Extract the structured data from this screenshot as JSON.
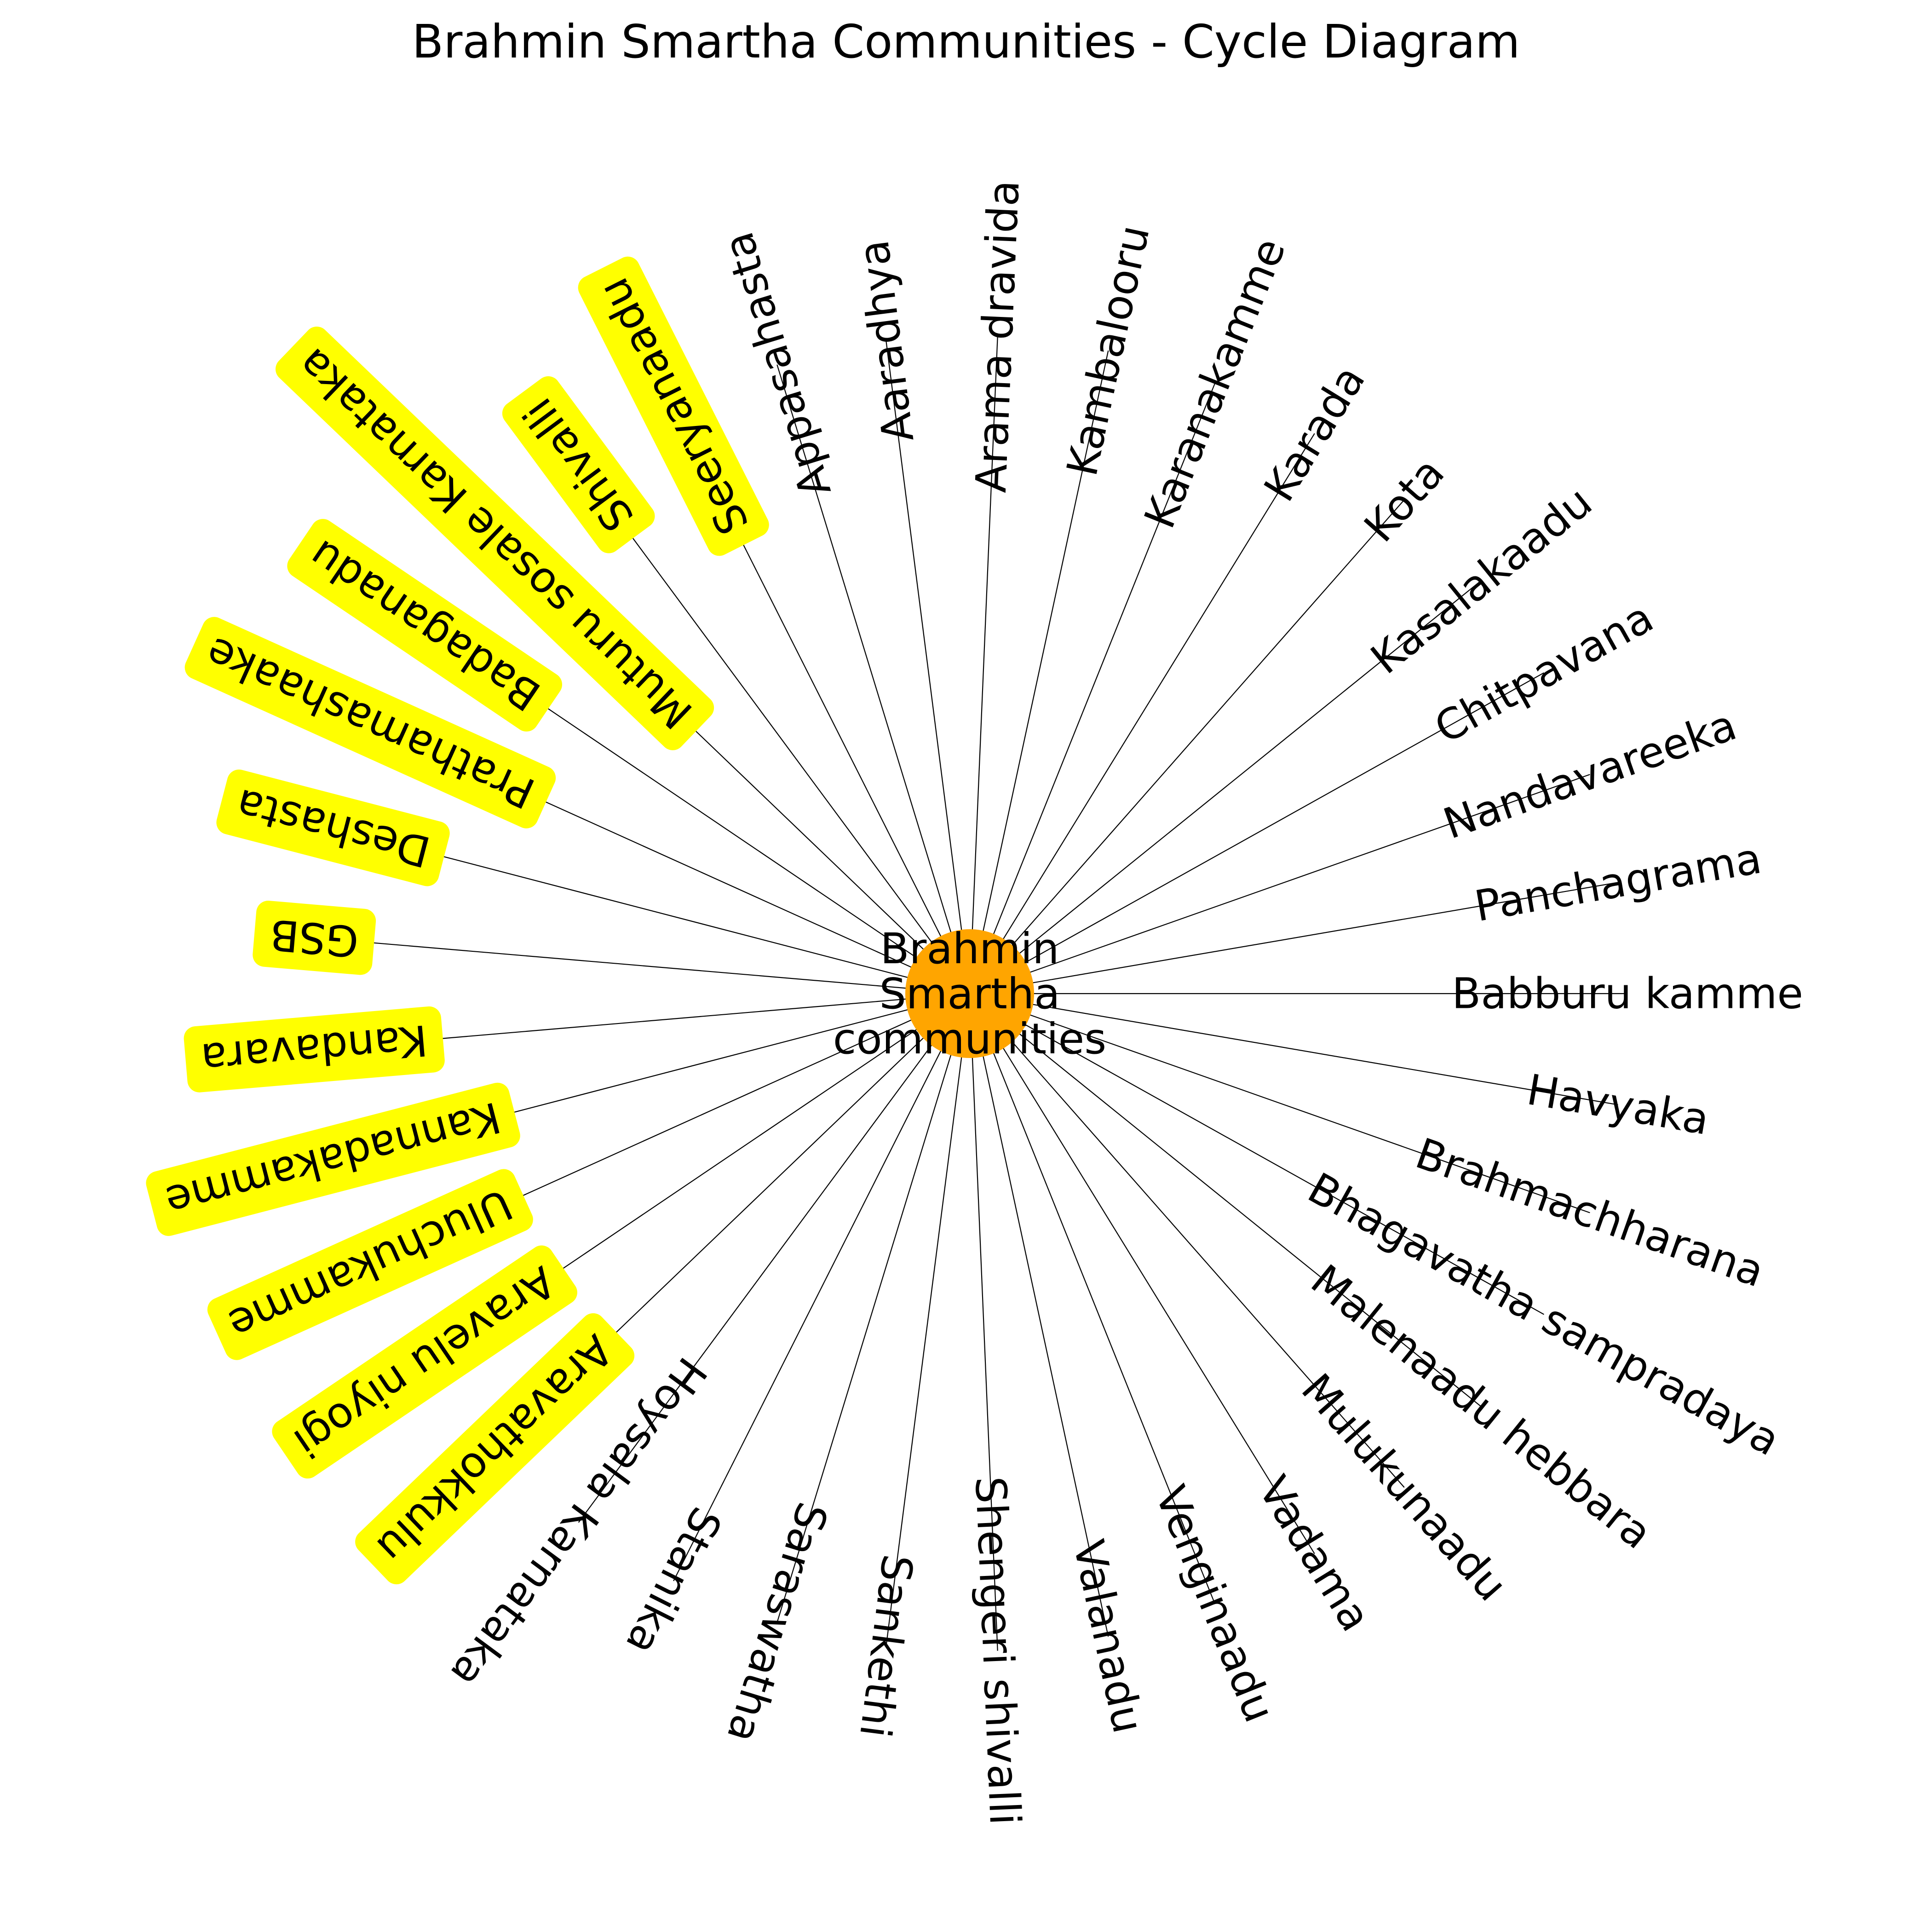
{
  "title": "Brahmin Smartha Communities - Cycle Diagram",
  "center": {
    "lines": [
      "Brahmin",
      "Smartha",
      "communities"
    ],
    "color": "#FFA500"
  },
  "colors": {
    "spoke": "#000000",
    "highlight_box": "#FFFF00"
  },
  "communities": [
    {
      "name": "Babburu kamme",
      "highlighted": false
    },
    {
      "name": "Panchagrama",
      "highlighted": false
    },
    {
      "name": "Nandavareeka",
      "highlighted": false
    },
    {
      "name": "Chitpavana",
      "highlighted": false
    },
    {
      "name": "Kasalakaadu",
      "highlighted": false
    },
    {
      "name": "Kota",
      "highlighted": false
    },
    {
      "name": "Karada",
      "highlighted": false
    },
    {
      "name": "Karanakamme",
      "highlighted": false
    },
    {
      "name": "Kambalooru",
      "highlighted": false
    },
    {
      "name": "Arama dravida",
      "highlighted": false
    },
    {
      "name": "Aaradhya",
      "highlighted": false
    },
    {
      "name": "Appasahasta",
      "highlighted": false
    },
    {
      "name": "Seeryanaadu",
      "highlighted": true
    },
    {
      "name": "Shivalli",
      "highlighted": true
    },
    {
      "name": "Muturu sosale Karnataka",
      "highlighted": true
    },
    {
      "name": "Badaganadu",
      "highlighted": true
    },
    {
      "name": "Prathamashaake",
      "highlighted": true
    },
    {
      "name": "Deshasta",
      "highlighted": true
    },
    {
      "name": "GSB",
      "highlighted": true
    },
    {
      "name": "Kandavara",
      "highlighted": true
    },
    {
      "name": "Kannadakamme",
      "highlighted": true
    },
    {
      "name": "Uluchukamme",
      "highlighted": true
    },
    {
      "name": "Aravelu niyogi",
      "highlighted": true
    },
    {
      "name": "Aravathokkulu",
      "highlighted": true
    },
    {
      "name": "Hoysala Karnataka",
      "highlighted": false
    },
    {
      "name": "Stanika",
      "highlighted": false
    },
    {
      "name": "Saraswatha",
      "highlighted": false
    },
    {
      "name": "Sankethi",
      "highlighted": false
    },
    {
      "name": "Shengeri shivalli",
      "highlighted": false
    },
    {
      "name": "Valanadu",
      "highlighted": false
    },
    {
      "name": "Venginaadu",
      "highlighted": false
    },
    {
      "name": "Vadama",
      "highlighted": false
    },
    {
      "name": "Mulukunaadu",
      "highlighted": false
    },
    {
      "name": "Malenaadu hebbara",
      "highlighted": false
    },
    {
      "name": "Bhagavatha sampradaya",
      "highlighted": false
    },
    {
      "name": "Brahmachharana",
      "highlighted": false
    },
    {
      "name": "Havyaka",
      "highlighted": false
    }
  ]
}
